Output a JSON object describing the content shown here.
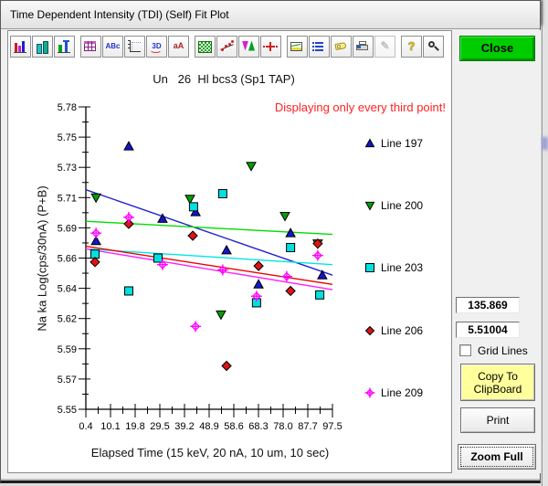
{
  "window": {
    "title": "Time Dependent Intensity (TDI) (Self) Fit Plot"
  },
  "toolbar": {
    "buttons": [
      {
        "icon": "bar-chart-icon",
        "glyph": ""
      },
      {
        "icon": "3d-bar-chart-icon",
        "glyph": ""
      },
      {
        "icon": "stacked-chart-icon",
        "glyph": ""
      },
      {
        "icon": "data-table-icon",
        "glyph": "",
        "group_start": true
      },
      {
        "icon": "text-label-icon",
        "glyph": "ABc"
      },
      {
        "icon": "axis-scale-icon",
        "glyph": ""
      },
      {
        "icon": "3d-rotate-icon",
        "glyph": "3D"
      },
      {
        "icon": "font-size-icon",
        "glyph": "aA"
      },
      {
        "icon": "pattern-fill-icon",
        "glyph": "",
        "group_start": true
      },
      {
        "icon": "curve-fit-icon",
        "glyph": ""
      },
      {
        "icon": "color-map-icon",
        "glyph": ""
      },
      {
        "icon": "crosshair-icon",
        "glyph": ""
      },
      {
        "icon": "export-plot-icon",
        "glyph": "",
        "group_start": true
      },
      {
        "icon": "series-list-icon",
        "glyph": ""
      },
      {
        "icon": "label-tag-icon",
        "glyph": ""
      },
      {
        "icon": "print-icon",
        "glyph": ""
      },
      {
        "icon": "edit-pencil-icon",
        "glyph": "✎",
        "disabled": true
      },
      {
        "icon": "help-icon",
        "glyph": "?",
        "group_start": true
      },
      {
        "icon": "zoom-icon",
        "glyph": ""
      }
    ]
  },
  "plot": {
    "title": "Un   26  Hl bcs3 (Sp1 TAP)",
    "warning": "Displaying only every third point!",
    "x_label": "Elapsed Time (15 keV, 20 nA, 10 um, 10 sec)",
    "y_label": "Na ka Log(cps/30nA) (P+B)"
  },
  "chart_data": {
    "type": "scatter",
    "title": "Un   26  Hl bcs3 (Sp1 TAP)",
    "xlabel": "Elapsed Time (15 keV, 20 nA, 10 um, 10 sec)",
    "ylabel": "Na ka Log(cps/30nA) (P+B)",
    "xlim": [
      0.4,
      97.5
    ],
    "ylim": [
      5.55,
      5.78
    ],
    "x_ticks": [
      "0.4",
      "10.1",
      "19.8",
      "29.5",
      "39.2",
      "48.9",
      "58.6",
      "68.3",
      "78.0",
      "87.7",
      "97.5"
    ],
    "y_ticks": [
      "5.78",
      "5.75",
      "5.73",
      "5.71",
      "5.69",
      "5.66",
      "5.64",
      "5.62",
      "5.59",
      "5.57",
      "5.55"
    ],
    "grid": false,
    "legend_position": "right",
    "series": [
      {
        "name": "Line 197",
        "marker": "triangle-up",
        "color": "#1414c8",
        "line_color": "#2222cc",
        "points": [
          [
            4.4,
            5.678
          ],
          [
            17.3,
            5.75
          ],
          [
            30.6,
            5.695
          ],
          [
            43.6,
            5.7
          ],
          [
            55.8,
            5.671
          ],
          [
            68.4,
            5.645
          ],
          [
            81.0,
            5.684
          ],
          [
            93.5,
            5.652
          ]
        ],
        "fit": [
          [
            0.4,
            5.717
          ],
          [
            97.5,
            5.652
          ]
        ]
      },
      {
        "name": "Line 200",
        "marker": "triangle-down",
        "color": "#00a000",
        "line_color": "#00dd00",
        "points": [
          [
            4.4,
            5.711
          ],
          [
            41.4,
            5.71
          ],
          [
            53.6,
            5.622
          ],
          [
            65.5,
            5.735
          ],
          [
            78.8,
            5.697
          ],
          [
            91.7,
            5.676
          ]
        ],
        "fit": [
          [
            0.4,
            5.693
          ],
          [
            97.5,
            5.683
          ]
        ]
      },
      {
        "name": "Line 203",
        "marker": "square",
        "color": "#00e0e0",
        "line_color": "#00e5e5",
        "points": [
          [
            4.0,
            5.668
          ],
          [
            17.3,
            5.64
          ],
          [
            28.8,
            5.665
          ],
          [
            42.8,
            5.704
          ],
          [
            54.3,
            5.714
          ],
          [
            67.6,
            5.631
          ],
          [
            81.0,
            5.673
          ],
          [
            92.5,
            5.637
          ]
        ],
        "fit": [
          [
            0.4,
            5.672
          ],
          [
            97.5,
            5.66
          ]
        ]
      },
      {
        "name": "Line 206",
        "marker": "diamond",
        "color": "#dd1414",
        "line_color": "#ee0000",
        "points": [
          [
            4.0,
            5.662
          ],
          [
            17.3,
            5.691
          ],
          [
            42.5,
            5.682
          ],
          [
            55.8,
            5.583
          ],
          [
            68.4,
            5.659
          ],
          [
            81.0,
            5.64
          ],
          [
            91.7,
            5.676
          ]
        ],
        "fit": [
          [
            0.4,
            5.674
          ],
          [
            97.5,
            5.645
          ]
        ]
      },
      {
        "name": "Line 209",
        "marker": "diamond-cross",
        "color": "#ff00ff",
        "line_color": "#ff22ff",
        "points": [
          [
            4.4,
            5.684
          ],
          [
            17.3,
            5.696
          ],
          [
            30.6,
            5.66
          ],
          [
            43.6,
            5.613
          ],
          [
            54.3,
            5.656
          ],
          [
            67.6,
            5.636
          ],
          [
            79.5,
            5.651
          ],
          [
            91.7,
            5.667
          ]
        ],
        "fit": [
          [
            0.4,
            5.672
          ],
          [
            97.5,
            5.641
          ]
        ]
      }
    ]
  },
  "readouts": {
    "x_value": "135.869",
    "y_value": "5.51004"
  },
  "checkbox": {
    "label": "Grid Lines",
    "checked": false
  },
  "buttons": {
    "close": "Close",
    "copy_line1": "Copy To",
    "copy_line2": "ClipBoard",
    "print": "Print",
    "zoom_full": "Zoom Full"
  }
}
